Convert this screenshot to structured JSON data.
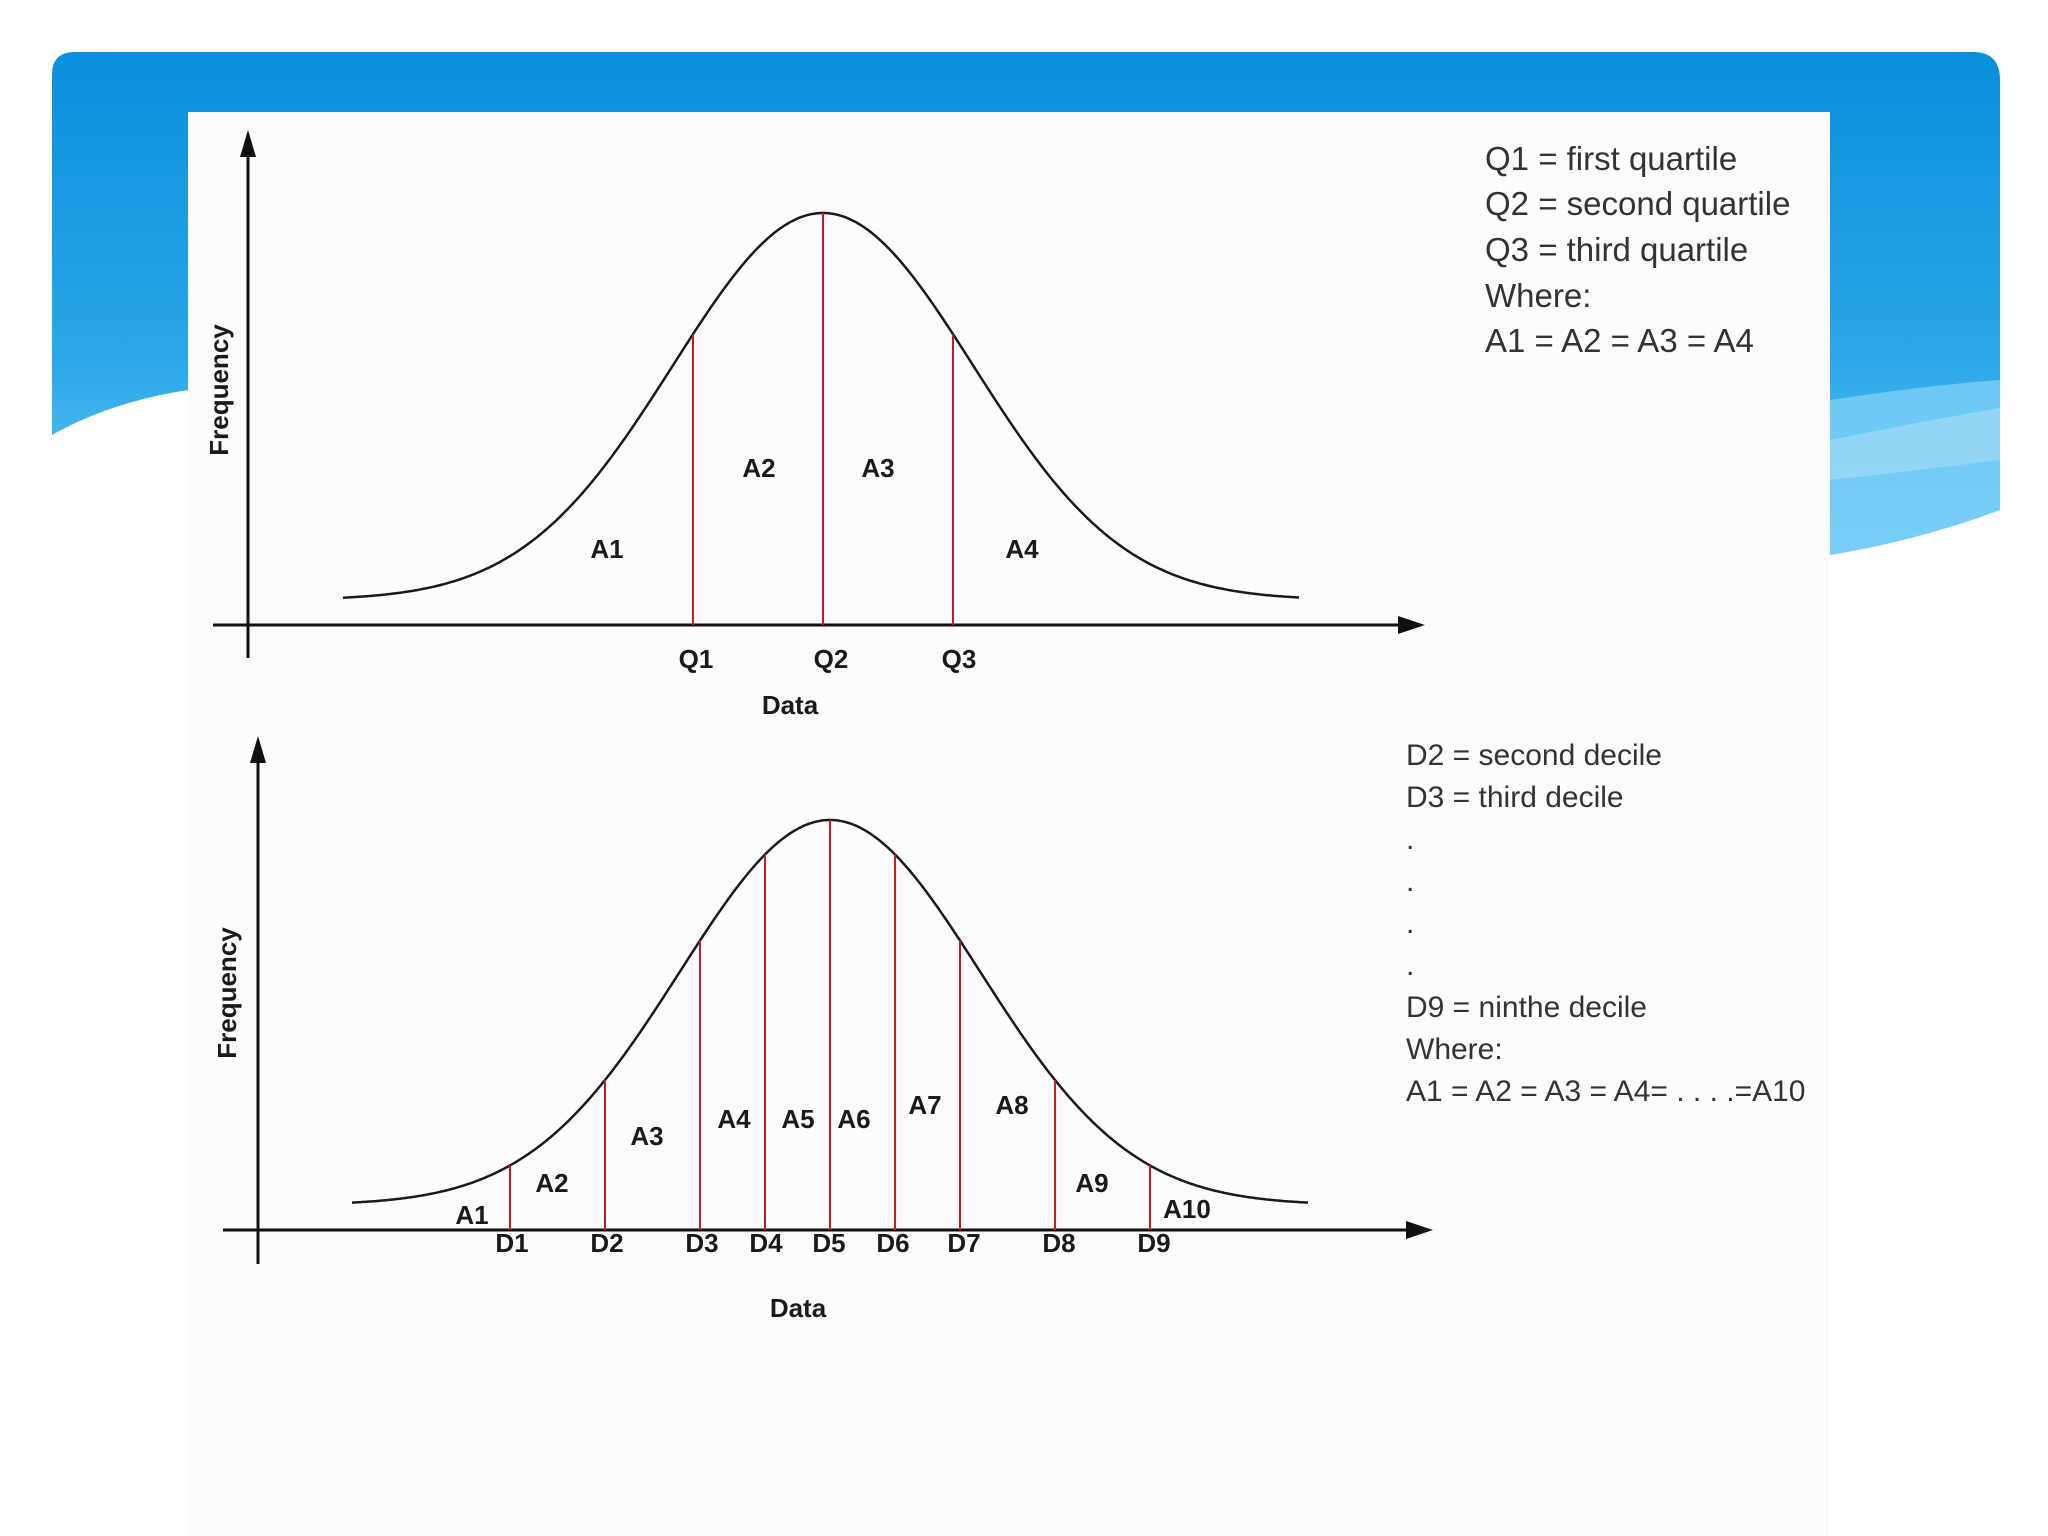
{
  "colors": {
    "banner_top": "#0a8fdc",
    "banner_bottom": "#5cc4f5",
    "banner_light": "#9ad9fb",
    "curve": "#1a1a1a",
    "divider_lines": "#c41e1e",
    "axis": "#111111",
    "slide_bg": "#fdfbfd"
  },
  "quartile_diagram": {
    "y_axis_label": "Frequency",
    "x_axis_label": "Data",
    "region_labels": [
      "A1",
      "A2",
      "A3",
      "A4"
    ],
    "divider_labels": [
      "Q1",
      "Q2",
      "Q3"
    ],
    "legend": [
      "Q1 = first quartile",
      "Q2 = second quartile",
      "Q3 = third quartile",
      "Where:",
      "A1 = A2 = A3 = A4"
    ]
  },
  "decile_diagram": {
    "y_axis_label": "Frequency",
    "x_axis_label": "Data",
    "region_labels": [
      "A1",
      "A2",
      "A3",
      "A4",
      "A5",
      "A6",
      "A7",
      "A8",
      "A9",
      "A10"
    ],
    "divider_labels": [
      "D1",
      "D2",
      "D3",
      "D4",
      "D5",
      "D6",
      "D7",
      "D8",
      "D9"
    ],
    "legend": [
      "D2 = second decile",
      "D3 = third decile",
      ".",
      ".",
      ".",
      ".",
      "D9 = ninthe decile",
      "Where:",
      "A1 = A2 = A3 = A4= . . . .=A10"
    ]
  }
}
